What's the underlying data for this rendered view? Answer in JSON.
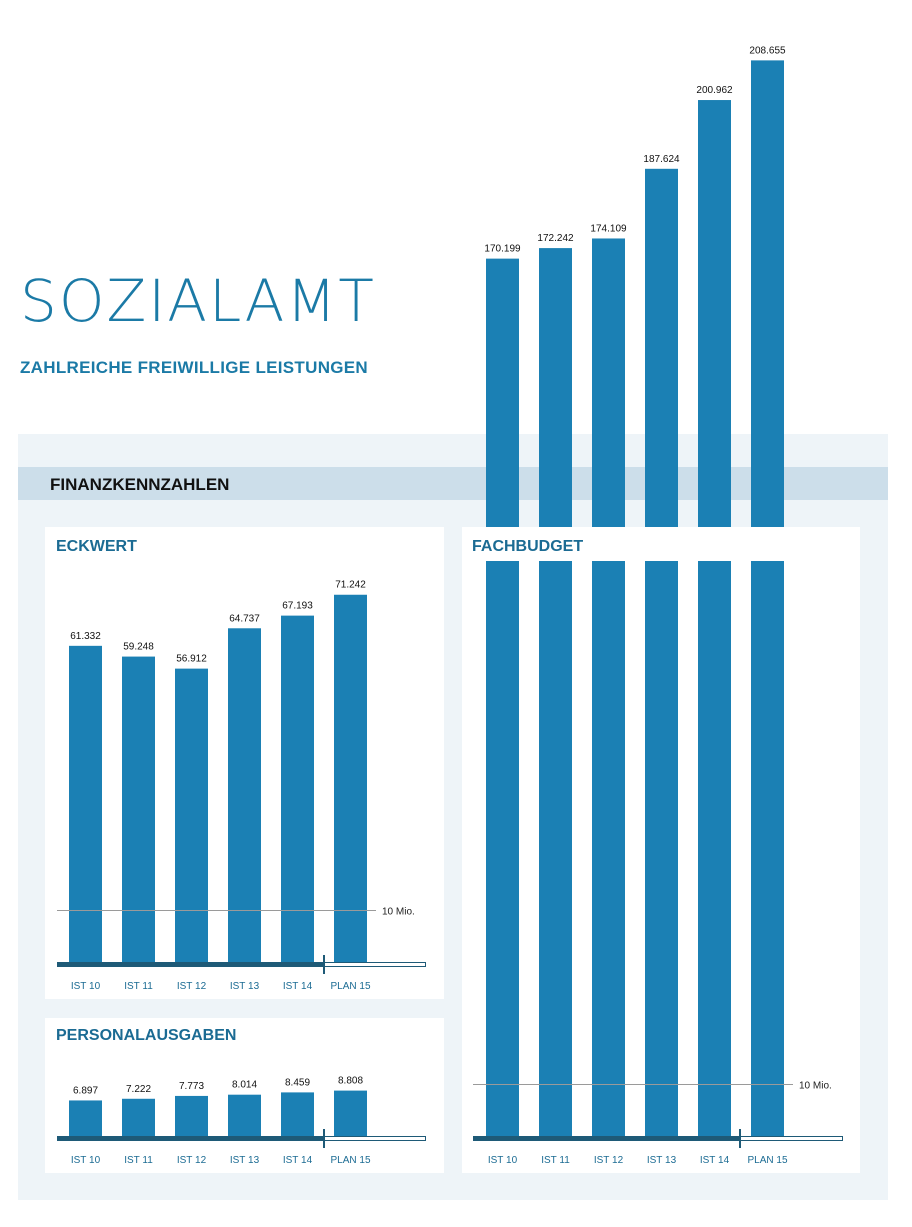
{
  "page": {
    "title": "SOZIALAMT",
    "subtitle": "ZAHLREICHE FREIWILLIGE LEISTUNGEN",
    "section_title": "FINANZKENNZAHLEN"
  },
  "colors": {
    "bar": "#1b80b4",
    "axis_dark": "#1e5a77",
    "title": "#1b7aa6",
    "section_band": "#ccdeea",
    "section_bg": "#eef4f8"
  },
  "chart_data": [
    {
      "id": "eckwert",
      "type": "bar",
      "title": "ECKWERT",
      "categories": [
        "IST 10",
        "IST 11",
        "IST 12",
        "IST 13",
        "IST 14",
        "PLAN 15"
      ],
      "values": [
        61.332,
        59.248,
        56.912,
        64.737,
        67.193,
        71.242
      ],
      "value_labels": [
        "61.332",
        "59.248",
        "56.912",
        "64.737",
        "67.193",
        "71.242"
      ],
      "reference_line": {
        "value": 10,
        "label": "10 Mio."
      },
      "grid": false,
      "legend": "none"
    },
    {
      "id": "personalausgaben",
      "type": "bar",
      "title": "PERSONALAUSGABEN",
      "categories": [
        "IST 10",
        "IST 11",
        "IST 12",
        "IST 13",
        "IST 14",
        "PLAN 15"
      ],
      "values": [
        6.897,
        7.222,
        7.773,
        8.014,
        8.459,
        8.808
      ],
      "value_labels": [
        "6.897",
        "7.222",
        "7.773",
        "8.014",
        "8.459",
        "8.808"
      ],
      "grid": false,
      "legend": "none"
    },
    {
      "id": "fachbudget",
      "type": "bar",
      "title": "FACHBUDGET",
      "categories": [
        "IST 10",
        "IST 11",
        "IST 12",
        "IST 13",
        "IST 14",
        "PLAN 15"
      ],
      "values": [
        170.199,
        172.242,
        174.109,
        187.624,
        200.962,
        208.655
      ],
      "value_labels": [
        "170.199",
        "172.242",
        "174.109",
        "187.624",
        "200.962",
        "208.655"
      ],
      "reference_line": {
        "value": 10,
        "label": "10 Mio."
      },
      "grid": false,
      "legend": "none"
    }
  ]
}
